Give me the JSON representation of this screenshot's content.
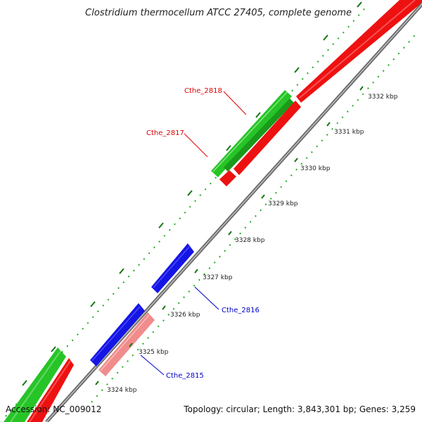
{
  "title": "Clostridium thermocellum ATCC 27405, complete genome",
  "footer": {
    "accession": "Accession: NC_009012",
    "summary": "Topology: circular; Length: 3,843,301 bp; Genes: 3,259"
  },
  "colors": {
    "backbone": "#8a8a8a",
    "green_track": "#27c427",
    "red_track": "#ee1111",
    "blue_gene": "#1515e6",
    "pink_gene": "#f08c8c",
    "tick_dark": "#117711",
    "tick_green": "#22aa22",
    "label_red": "#dd0000",
    "label_blue": "#0000cc"
  },
  "ticks": [
    {
      "label": "3324 kbp"
    },
    {
      "label": "3325 kbp"
    },
    {
      "label": "3326 kbp"
    },
    {
      "label": "3327 kbp"
    },
    {
      "label": "3328 kbp"
    },
    {
      "label": "3329 kbp"
    },
    {
      "label": "3330 kbp"
    },
    {
      "label": "3331 kbp"
    },
    {
      "label": "3332 kbp"
    }
  ],
  "gene_labels": [
    {
      "name": "Cthe_2818",
      "strand": "forward"
    },
    {
      "name": "Cthe_2817",
      "strand": "forward"
    },
    {
      "name": "Cthe_2816",
      "strand": "reverse"
    },
    {
      "name": "Cthe_2815",
      "strand": "reverse"
    }
  ]
}
